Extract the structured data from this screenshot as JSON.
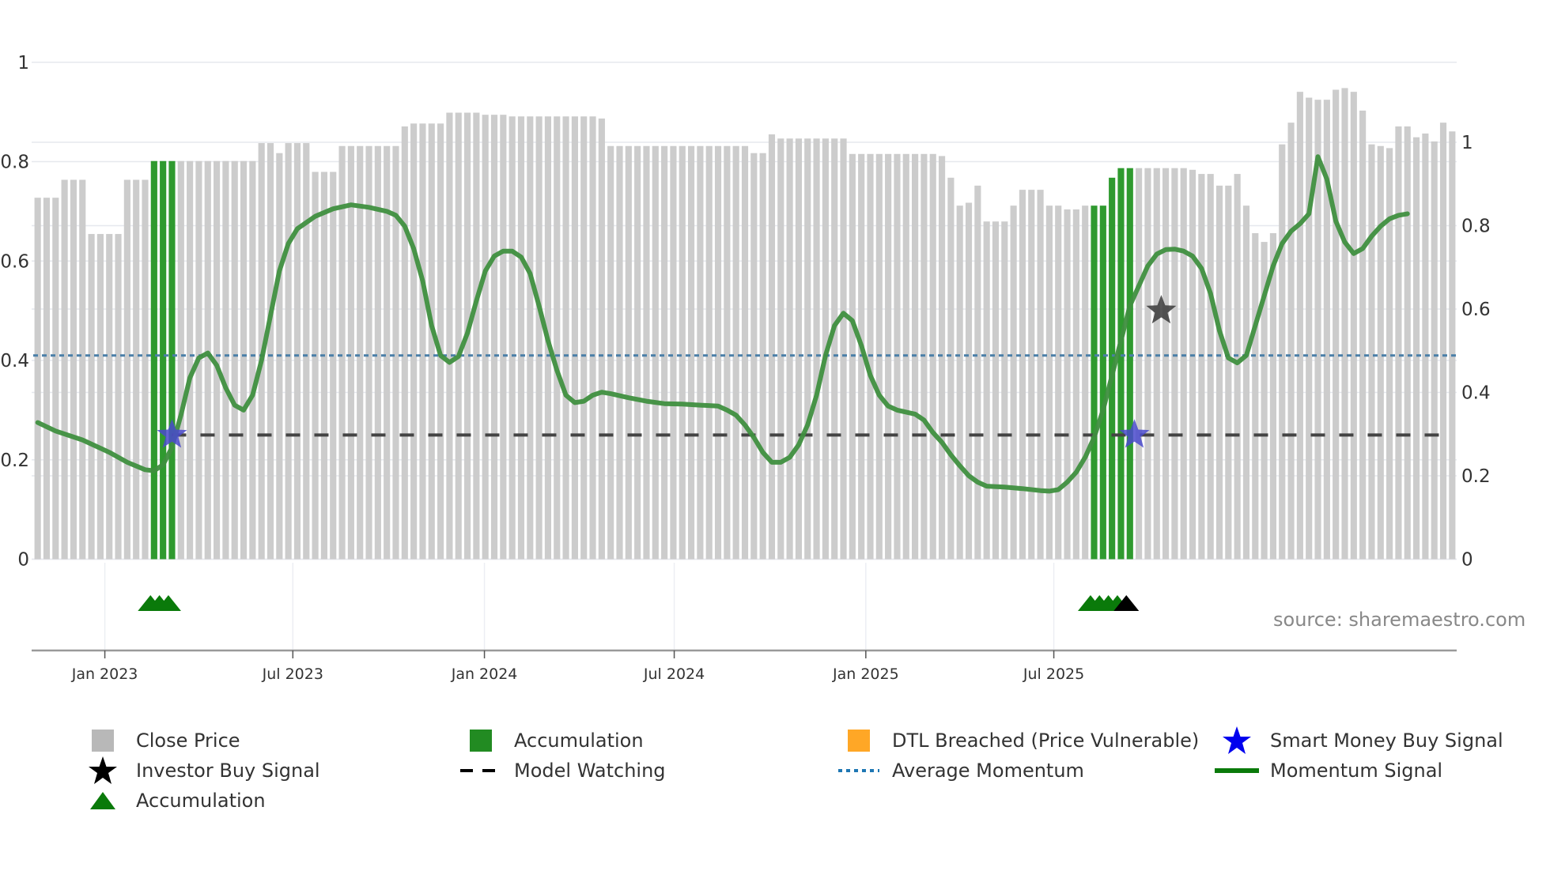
{
  "chart_data": {
    "type": "bar",
    "title": "",
    "xlabel": "",
    "ylabel_left": "",
    "ylabel_right": "",
    "left_axis": {
      "ticks": [
        0,
        0.2,
        0.4,
        0.6,
        0.8,
        1
      ],
      "labels": [
        "0",
        "0.2",
        "0.4",
        "0.6",
        "0.8",
        "1"
      ],
      "range": [
        0,
        1.0
      ]
    },
    "right_axis": {
      "ticks": [
        0,
        0.2,
        0.4,
        0.6,
        0.8,
        1
      ],
      "labels": [
        "0",
        "0.2",
        "0.4",
        "0.6",
        "0.8",
        "1"
      ],
      "range": [
        0,
        1.19
      ]
    },
    "x_ticks": [
      {
        "label": "Jan 2023",
        "bar_index": 7.5
      },
      {
        "label": "Jul 2023",
        "bar_index": 28.5
      },
      {
        "label": "Jan 2024",
        "bar_index": 49.9
      },
      {
        "label": "Jul 2024",
        "bar_index": 71.1
      },
      {
        "label": "Jan 2025",
        "bar_index": 92.5
      },
      {
        "label": "Jul 2025",
        "bar_index": 113.5
      }
    ],
    "close_price_bars": [
      0.867,
      0.867,
      0.867,
      0.91,
      0.91,
      0.91,
      0.78,
      0.78,
      0.78,
      0.78,
      0.91,
      0.91,
      0.91,
      0.955,
      0.955,
      0.955,
      0.955,
      0.955,
      0.955,
      0.955,
      0.955,
      0.955,
      0.955,
      0.955,
      0.955,
      0.998,
      0.998,
      0.974,
      0.998,
      0.998,
      0.998,
      0.929,
      0.929,
      0.929,
      0.991,
      0.991,
      0.991,
      0.991,
      0.991,
      0.991,
      0.991,
      1.038,
      1.045,
      1.045,
      1.045,
      1.045,
      1.071,
      1.071,
      1.071,
      1.071,
      1.066,
      1.066,
      1.066,
      1.062,
      1.062,
      1.062,
      1.062,
      1.062,
      1.062,
      1.062,
      1.062,
      1.062,
      1.062,
      1.057,
      0.991,
      0.991,
      0.991,
      0.991,
      0.991,
      0.991,
      0.991,
      0.991,
      0.991,
      0.991,
      0.991,
      0.991,
      0.991,
      0.991,
      0.991,
      0.991,
      0.974,
      0.974,
      1.019,
      1.009,
      1.009,
      1.009,
      1.009,
      1.009,
      1.009,
      1.009,
      1.009,
      0.972,
      0.972,
      0.972,
      0.972,
      0.972,
      0.972,
      0.972,
      0.972,
      0.972,
      0.972,
      0.967,
      0.915,
      0.848,
      0.855,
      0.896,
      0.81,
      0.81,
      0.81,
      0.848,
      0.886,
      0.886,
      0.886,
      0.848,
      0.848,
      0.839,
      0.839,
      0.848,
      0.848,
      0.848,
      0.915,
      0.938,
      0.938,
      0.938,
      0.938,
      0.938,
      0.938,
      0.938,
      0.938,
      0.934,
      0.924,
      0.924,
      0.896,
      0.896,
      0.924,
      0.848,
      0.782,
      0.761,
      0.782,
      0.995,
      1.047,
      1.121,
      1.107,
      1.102,
      1.102,
      1.126,
      1.13,
      1.121,
      1.076,
      0.995,
      0.991,
      0.986,
      1.038,
      1.038,
      1.012,
      1.021,
      1.002,
      1.047,
      1.026
    ],
    "accumulation_bar_indices": [
      13,
      14,
      15,
      118,
      119,
      120,
      121,
      122
    ],
    "momentum_signal": [
      [
        0,
        0.275
      ],
      [
        2,
        0.258
      ],
      [
        5,
        0.24
      ],
      [
        8,
        0.215
      ],
      [
        10,
        0.195
      ],
      [
        12,
        0.18
      ],
      [
        13,
        0.178
      ],
      [
        14,
        0.19
      ],
      [
        15,
        0.225
      ],
      [
        16,
        0.29
      ],
      [
        17,
        0.365
      ],
      [
        18,
        0.405
      ],
      [
        19,
        0.415
      ],
      [
        20,
        0.39
      ],
      [
        21,
        0.345
      ],
      [
        22,
        0.31
      ],
      [
        23,
        0.3
      ],
      [
        24,
        0.33
      ],
      [
        25,
        0.4
      ],
      [
        26,
        0.49
      ],
      [
        27,
        0.58
      ],
      [
        28,
        0.635
      ],
      [
        29,
        0.665
      ],
      [
        31,
        0.69
      ],
      [
        33,
        0.705
      ],
      [
        35,
        0.713
      ],
      [
        37,
        0.708
      ],
      [
        39,
        0.7
      ],
      [
        40,
        0.692
      ],
      [
        41,
        0.67
      ],
      [
        42,
        0.625
      ],
      [
        43,
        0.56
      ],
      [
        44,
        0.47
      ],
      [
        45,
        0.41
      ],
      [
        46,
        0.396
      ],
      [
        47,
        0.408
      ],
      [
        48,
        0.455
      ],
      [
        49,
        0.52
      ],
      [
        50,
        0.58
      ],
      [
        51,
        0.61
      ],
      [
        52,
        0.62
      ],
      [
        53,
        0.62
      ],
      [
        54,
        0.608
      ],
      [
        55,
        0.575
      ],
      [
        56,
        0.51
      ],
      [
        57,
        0.44
      ],
      [
        58,
        0.38
      ],
      [
        59,
        0.33
      ],
      [
        60,
        0.315
      ],
      [
        61,
        0.318
      ],
      [
        62,
        0.33
      ],
      [
        63,
        0.336
      ],
      [
        64,
        0.333
      ],
      [
        66,
        0.325
      ],
      [
        68,
        0.318
      ],
      [
        70,
        0.313
      ],
      [
        72,
        0.312
      ],
      [
        74,
        0.31
      ],
      [
        76,
        0.308
      ],
      [
        77,
        0.3
      ],
      [
        78,
        0.29
      ],
      [
        79,
        0.27
      ],
      [
        80,
        0.245
      ],
      [
        81,
        0.215
      ],
      [
        82,
        0.195
      ],
      [
        83,
        0.195
      ],
      [
        84,
        0.205
      ],
      [
        85,
        0.23
      ],
      [
        86,
        0.27
      ],
      [
        87,
        0.33
      ],
      [
        88,
        0.41
      ],
      [
        89,
        0.47
      ],
      [
        90,
        0.495
      ],
      [
        91,
        0.48
      ],
      [
        92,
        0.43
      ],
      [
        93,
        0.37
      ],
      [
        94,
        0.33
      ],
      [
        95,
        0.308
      ],
      [
        96,
        0.3
      ],
      [
        98,
        0.292
      ],
      [
        99,
        0.28
      ],
      [
        100,
        0.255
      ],
      [
        101,
        0.235
      ],
      [
        102,
        0.21
      ],
      [
        103,
        0.188
      ],
      [
        104,
        0.168
      ],
      [
        105,
        0.155
      ],
      [
        106,
        0.147
      ],
      [
        108,
        0.145
      ],
      [
        110,
        0.142
      ],
      [
        112,
        0.138
      ],
      [
        113,
        0.137
      ],
      [
        114,
        0.14
      ],
      [
        115,
        0.155
      ],
      [
        116,
        0.175
      ],
      [
        117,
        0.205
      ],
      [
        118,
        0.245
      ],
      [
        119,
        0.3
      ],
      [
        120,
        0.37
      ],
      [
        121,
        0.44
      ],
      [
        122,
        0.51
      ],
      [
        123,
        0.55
      ],
      [
        124,
        0.59
      ],
      [
        125,
        0.614
      ],
      [
        126,
        0.623
      ],
      [
        127,
        0.624
      ],
      [
        128,
        0.62
      ],
      [
        129,
        0.61
      ],
      [
        130,
        0.585
      ],
      [
        131,
        0.535
      ],
      [
        132,
        0.46
      ],
      [
        133,
        0.405
      ],
      [
        134,
        0.395
      ],
      [
        135,
        0.41
      ],
      [
        136,
        0.47
      ],
      [
        137,
        0.53
      ],
      [
        138,
        0.59
      ],
      [
        139,
        0.635
      ],
      [
        140,
        0.66
      ],
      [
        141,
        0.675
      ],
      [
        142,
        0.695
      ],
      [
        143,
        0.81
      ],
      [
        144,
        0.765
      ],
      [
        145,
        0.68
      ],
      [
        146,
        0.638
      ],
      [
        147,
        0.615
      ],
      [
        148,
        0.625
      ],
      [
        149,
        0.65
      ],
      [
        150,
        0.67
      ],
      [
        151,
        0.685
      ],
      [
        152,
        0.692
      ],
      [
        153,
        0.695
      ]
    ],
    "average_momentum": 0.41,
    "model_watching": {
      "value": 0.25,
      "from_bar_index": 15,
      "to_bar_index": 158
    },
    "smart_money_buy_signals": [
      {
        "bar_index": 15,
        "value": 0.25
      },
      {
        "bar_index": 122.5,
        "value": 0.25
      }
    ],
    "investor_buy_signals": [
      {
        "bar_index": 125.5,
        "value": 0.5
      }
    ],
    "accumulation_markers": [
      {
        "bar_index": 12.6,
        "color": "green"
      },
      {
        "bar_index": 13.6,
        "color": "green"
      },
      {
        "bar_index": 14.6,
        "color": "green"
      },
      {
        "bar_index": 117.6,
        "color": "green"
      },
      {
        "bar_index": 118.6,
        "color": "green"
      },
      {
        "bar_index": 119.6,
        "color": "green"
      },
      {
        "bar_index": 120.6,
        "color": "green"
      },
      {
        "bar_index": 121.6,
        "color": "black"
      }
    ],
    "legend": [
      {
        "label": "Close Price",
        "symbol": "square",
        "color": "#b8b8b8"
      },
      {
        "label": "Accumulation",
        "symbol": "square",
        "color": "#228b22"
      },
      {
        "label": "DTL Breached (Price Vulnerable)",
        "symbol": "square",
        "color": "#ffa726"
      },
      {
        "label": "Smart Money Buy Signal",
        "symbol": "star",
        "color": "#0000ee"
      },
      {
        "label": "Investor Buy Signal",
        "symbol": "star",
        "color": "#000000"
      },
      {
        "label": "Model Watching",
        "symbol": "dash",
        "color": "#000000"
      },
      {
        "label": "Average Momentum",
        "symbol": "dot",
        "color": "#1f77b4"
      },
      {
        "label": "Momentum Signal",
        "symbol": "line",
        "color": "#0a7a0a"
      },
      {
        "label": "Accumulation",
        "symbol": "triangle",
        "color": "#0a7a0a"
      }
    ],
    "grid": true,
    "legend_position": "bottom",
    "annotation": "source: sharemaestro.com"
  },
  "colors": {
    "bar": "#cccccc",
    "accumulation_bar": "#2f9a2f",
    "momentum": "#3f8f3f",
    "average": "#4a7fa8",
    "model_watching": "#444444",
    "smart_money_star": "#4a4acc",
    "investor_star": "#3a3a3a",
    "grid": "#e6e8ee",
    "axis": "#999999",
    "text": "#333333",
    "source_text": "#888888"
  },
  "annotation": {
    "source": "source: sharemaestro.com"
  }
}
